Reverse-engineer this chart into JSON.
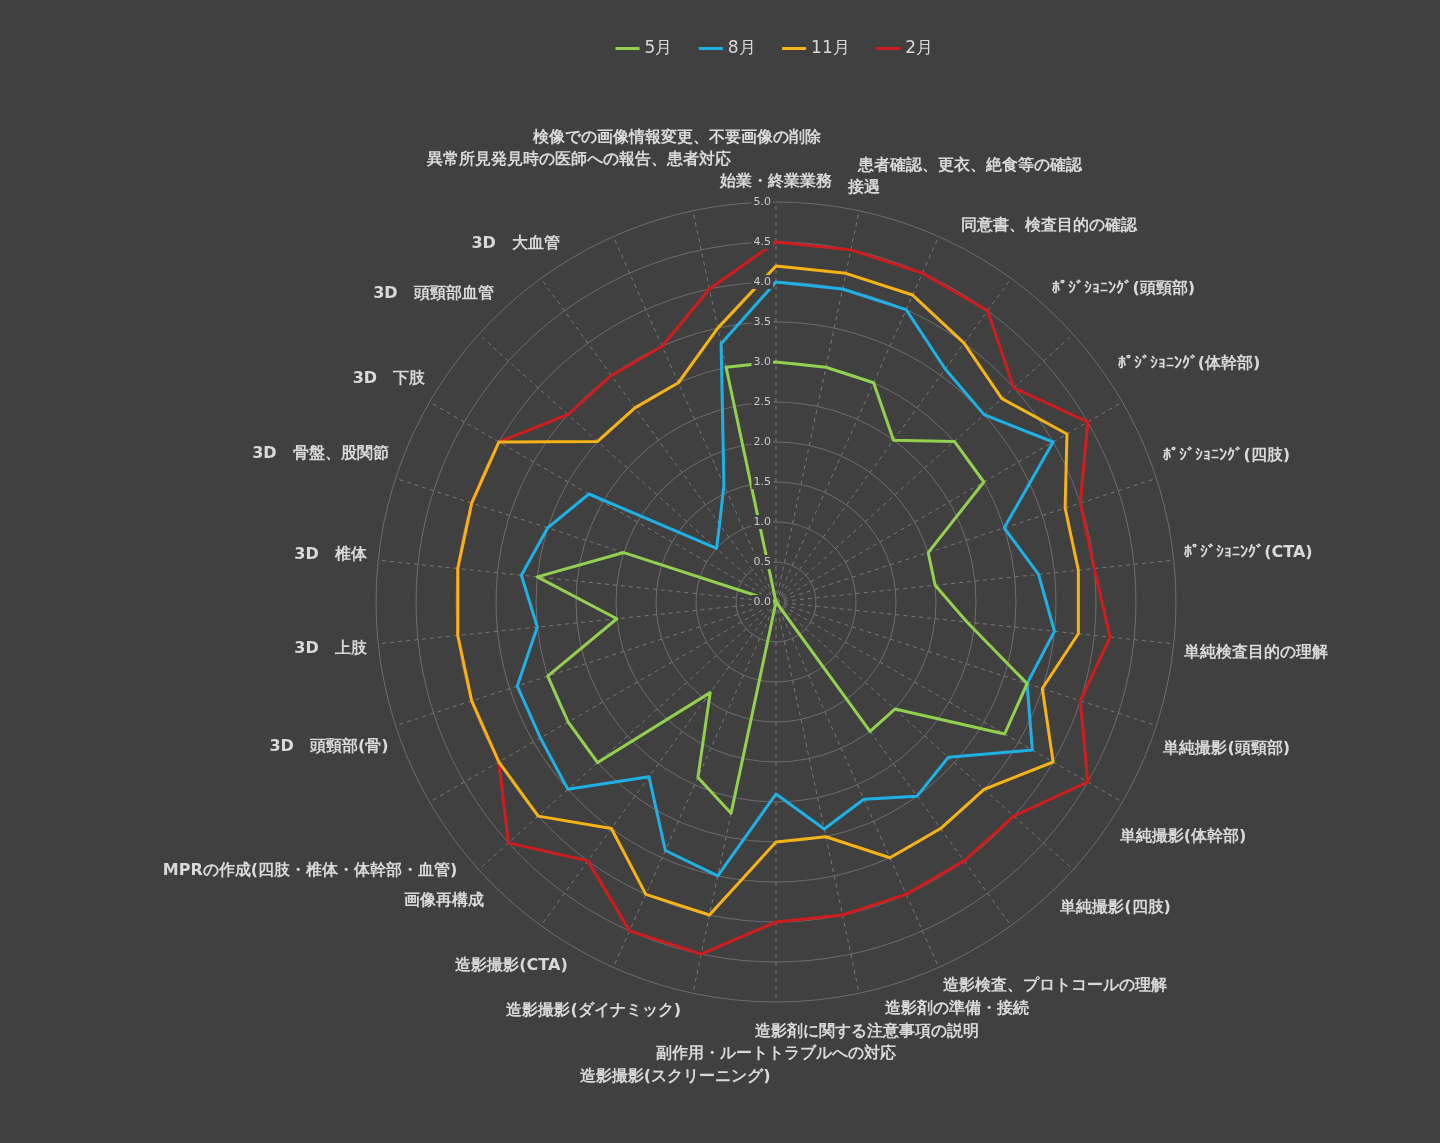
{
  "chart_data": {
    "type": "radar",
    "categories": [
      "始業・終業業務",
      "接遇",
      "患者確認、更衣、絶食等の確認",
      "同意書、検査目的の確認",
      "ﾎﾟｼﾞｼｮﾆﾝｸﾞ(頭頸部)",
      "ﾎﾟｼﾞｼｮﾆﾝｸﾞ(体幹部)",
      "ﾎﾟｼﾞｼｮﾆﾝｸﾞ(四肢)",
      "ﾎﾟｼﾞｼｮﾆﾝｸﾞ(CTA)",
      "単純検査目的の理解",
      "単純撮影(頭頸部)",
      "単純撮影(体幹部)",
      "単純撮影(四肢)",
      "造影検査、プロトコールの理解",
      "造影剤の準備・接続",
      "造影剤に関する注意事項の説明",
      "副作用・ルートトラブルへの対応",
      "造影撮影(スクリーニング)",
      "造影撮影(ダイナミック)",
      "造影撮影(CTA)",
      "画像再構成",
      "MPRの作成(四肢・椎体・体幹部・血管)",
      "3D　頭頸部(骨)",
      "3D　上肢",
      "3D　椎体",
      "3D　骨盤、股関節",
      "3D　下肢",
      "3D　頭頸部血管",
      "3D　大血管",
      "異常所見発見時の医師への報告、患者対応",
      "検像での画像情報変更、不要画像の削除"
    ],
    "series": [
      {
        "name": "5月",
        "color": "#92d050",
        "values": [
          3.0,
          3.0,
          3.0,
          2.5,
          3.0,
          3.0,
          2.0,
          2.0,
          2.4,
          3.3,
          3.3,
          2.0,
          2.0,
          0,
          0,
          0,
          2.7,
          2.4,
          1.4,
          3.0,
          3.0,
          3.0,
          2.0,
          3.0,
          2.0,
          0,
          0,
          0,
          0,
          3.0
        ]
      },
      {
        "name": "8月",
        "color": "#1fb0e6",
        "values": [
          4.0,
          4.0,
          4.0,
          3.6,
          3.5,
          4.0,
          3.0,
          3.3,
          3.5,
          3.3,
          3.7,
          2.9,
          3.0,
          2.7,
          2.9,
          2.4,
          3.5,
          3.4,
          2.7,
          3.5,
          3.4,
          3.4,
          3.0,
          3.2,
          3.0,
          2.7,
          1.0,
          1.2,
          1.6,
          3.3
        ]
      },
      {
        "name": "11月",
        "color": "#f5b316",
        "values": [
          4.2,
          4.2,
          4.2,
          4.0,
          3.8,
          4.2,
          3.8,
          3.8,
          3.8,
          3.5,
          4.0,
          3.5,
          3.5,
          3.5,
          3.0,
          3.0,
          4.0,
          4.0,
          3.5,
          4.0,
          4.0,
          4.0,
          4.0,
          4.0,
          4.0,
          4.0,
          3.0,
          3.0,
          3.0,
          3.5
        ]
      },
      {
        "name": "2月",
        "color": "#d01c1c",
        "values": [
          4.5,
          4.5,
          4.5,
          4.5,
          4.0,
          4.5,
          4.0,
          4.0,
          4.2,
          4.0,
          4.5,
          4.0,
          4.0,
          4.0,
          4.0,
          4.0,
          4.5,
          4.5,
          4.0,
          4.5,
          4.0,
          4.0,
          4.0,
          4.0,
          4.0,
          4.0,
          3.5,
          3.5,
          3.5,
          4.0
        ]
      }
    ],
    "ylim": [
      0,
      5
    ],
    "yticks": [
      {
        "value": 0,
        "label": "0.0"
      },
      {
        "value": 0.5,
        "label": "0.5"
      },
      {
        "value": 1,
        "label": "1.0"
      },
      {
        "value": 1.5,
        "label": "1.5"
      },
      {
        "value": 2,
        "label": "2.0"
      },
      {
        "value": 2.5,
        "label": "2.5"
      },
      {
        "value": 3,
        "label": "3.0"
      },
      {
        "value": 3.5,
        "label": "3.5"
      },
      {
        "value": 4,
        "label": "4.0"
      },
      {
        "value": 4.5,
        "label": "4.5"
      },
      {
        "value": 5,
        "label": "5.0"
      }
    ],
    "grid": true,
    "legend": "top",
    "marker": "none",
    "line_style": "solid"
  }
}
